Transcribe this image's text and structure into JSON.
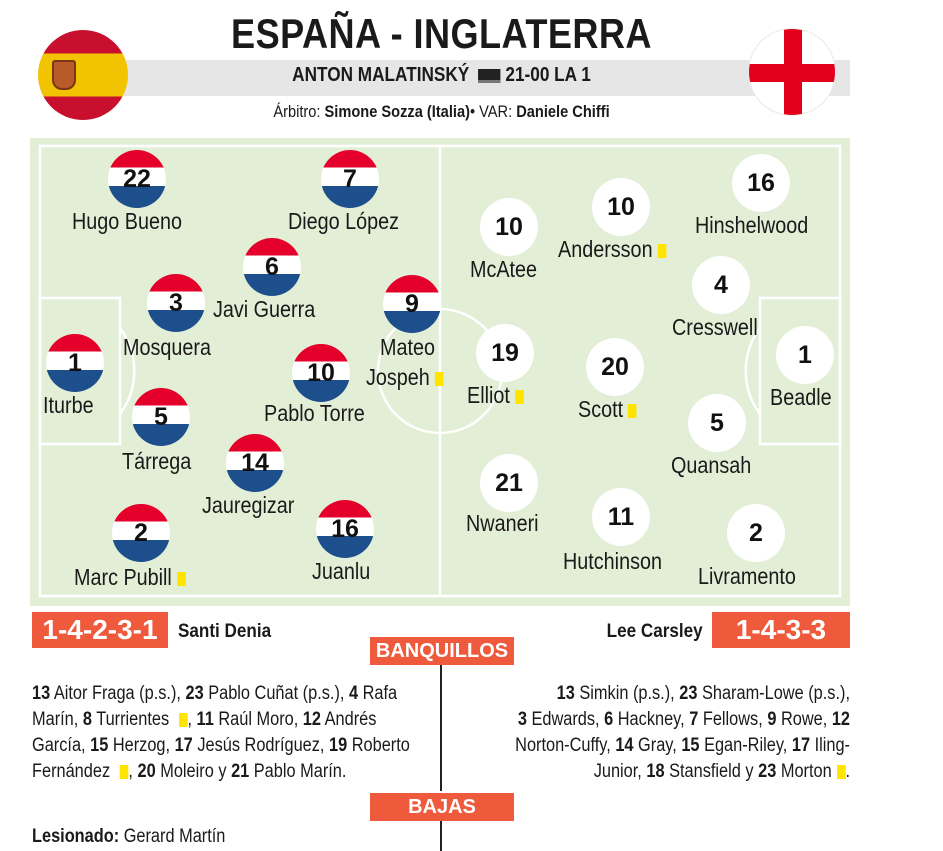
{
  "header": {
    "title": "ESPAÑA - INGLATERRA",
    "commentator": "ANTON MALATINSKÝ",
    "time_channel": "21-00 LA 1",
    "referee_label": "Árbitro: ",
    "referee_name": "Simone Sozza (Italia)",
    "separator": "• ",
    "var_label": "VAR: ",
    "var_name": "Daniele Chiffi"
  },
  "colors": {
    "accent": "#f05a3c",
    "pitch": "#e3eed7",
    "spain_red": "#e4002b",
    "spain_blue": "#1d4f8c",
    "england_red": "#e3001b",
    "card_yellow": "#ffe400"
  },
  "icons": {
    "tv": "tv-icon",
    "spain_flag": "spain-flag-icon",
    "england_flag": "england-flag-icon",
    "yellow_card": "yellow-card-icon"
  },
  "spain": {
    "formation": "1-4-2-3-1",
    "coach": "Santi Denia",
    "players": [
      {
        "number": "22",
        "name": "Hugo Bueno"
      },
      {
        "number": "7",
        "name": "Diego López"
      },
      {
        "number": "6",
        "name": "Javi Guerra"
      },
      {
        "number": "3",
        "name": "Mosquera"
      },
      {
        "number": "9",
        "name": "Mateo",
        "name2": "Jospeh"
      },
      {
        "number": "1",
        "name": "Iturbe"
      },
      {
        "number": "10",
        "name": "Pablo Torre"
      },
      {
        "number": "5",
        "name": "Tárrega"
      },
      {
        "number": "14",
        "name": "Jauregizar"
      },
      {
        "number": "2",
        "name": "Marc Pubill"
      },
      {
        "number": "16",
        "name": "Juanlu"
      }
    ]
  },
  "england": {
    "formation": "1-4-3-3",
    "coach": "Lee Carsley",
    "players": [
      {
        "number": "10",
        "name": "McAtee"
      },
      {
        "number": "10",
        "name": "Andersson"
      },
      {
        "number": "16",
        "name": "Hinshelwood"
      },
      {
        "number": "4",
        "name": "Cresswell"
      },
      {
        "number": "19",
        "name": "Elliot"
      },
      {
        "number": "20",
        "name": "Scott"
      },
      {
        "number": "1",
        "name": "Beadle"
      },
      {
        "number": "5",
        "name": "Quansah"
      },
      {
        "number": "21",
        "name": "Nwaneri"
      },
      {
        "number": "11",
        "name": "Hutchinson"
      },
      {
        "number": "2",
        "name": "Livramento"
      }
    ]
  },
  "sections": {
    "bench_title": "BANQUILLOS",
    "absences_title": "BAJAS"
  },
  "bench_spain": {
    "l1": [
      "13",
      " Aitor Fraga (p.s.), ",
      "23",
      " Pablo Cuñat (p.s.), ",
      "4",
      " Rafa"
    ],
    "l2": [
      "Marín, ",
      "8",
      " Turrientes",
      " ",
      ", ",
      "11",
      " Raúl Moro, ",
      "12",
      " Andrés"
    ],
    "l3": [
      "García, ",
      "15",
      " Herzog, ",
      "17",
      " Jesús Rodríguez, ",
      "19",
      " Roberto"
    ],
    "l4": [
      "Fernández",
      " ",
      ", ",
      "20",
      " Moleiro y ",
      "21",
      " Pablo Marín."
    ]
  },
  "bench_england": {
    "l1": [
      "13",
      " Simkin (p.s.), ",
      "23",
      " Sharam-Lowe (p.s.),"
    ],
    "l2": [
      "3",
      " Edwards, ",
      "6",
      " Hackney, ",
      "7",
      " Fellows, ",
      " 9",
      " Rowe, ",
      "12"
    ],
    "l3": [
      "Norton-Cuffy, ",
      "14",
      " Gray, ",
      "15",
      " Egan-Riley, ",
      "17",
      " Iling-"
    ],
    "l4": [
      "Junior, ",
      "18",
      " Stansfield y ",
      "23",
      " Morton",
      "."
    ]
  },
  "absences": {
    "label": "Lesionado:",
    "name": " Gerard Martín"
  }
}
